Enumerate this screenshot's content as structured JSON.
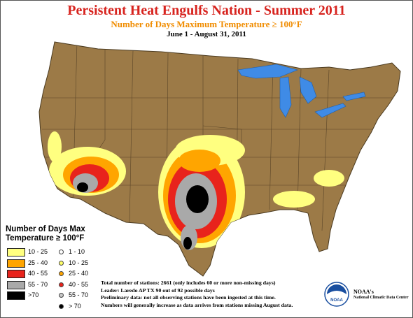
{
  "header": {
    "title": "Persistent Heat Engulfs Nation - Summer 2011",
    "subtitle": "Number of Days Maximum Temperature ≥ 100°F",
    "date_range": "June 1 - August 31, 2011"
  },
  "legend": {
    "title_line1": "Number of Days Max",
    "title_line2": "Temperature ≥ 100°F",
    "area_classes": [
      {
        "label": "10 - 25",
        "color": "#ffff80"
      },
      {
        "label": "25 - 40",
        "color": "#ffa500"
      },
      {
        "label": "40 - 55",
        "color": "#e8231c"
      },
      {
        "label": "55 - 70",
        "color": "#a9a9a9"
      },
      {
        "label": ">70",
        "color": "#000000"
      }
    ],
    "station_classes": [
      {
        "label": "1 - 10",
        "color": "#ffffff"
      },
      {
        "label": "10 - 25",
        "color": "#ffff66"
      },
      {
        "label": "25 - 40",
        "color": "#ffa500"
      },
      {
        "label": "40 - 55",
        "color": "#e8231c"
      },
      {
        "label": "55 - 70",
        "color": "#c8c8c8"
      },
      {
        "label": "> 70",
        "color": "#000000"
      }
    ]
  },
  "notes": [
    "Total number of stations: 2661 (only includes 60 or more non-missing days)",
    "Leader: Laredo AP TX 90 out of 92 possible days",
    "Preliminary data: not all observing stations have been ingested at this time.",
    "Numbers will generally increase as data arrives from  stations missing August data."
  ],
  "branding": {
    "logo_text": "NOAA",
    "agency": "NOAA's",
    "center": "National Climatic Data Center"
  },
  "colors": {
    "land": "#9c7a47",
    "water": "#3f8be6",
    "title": "#d7231e",
    "subtitle": "#f08c00"
  }
}
